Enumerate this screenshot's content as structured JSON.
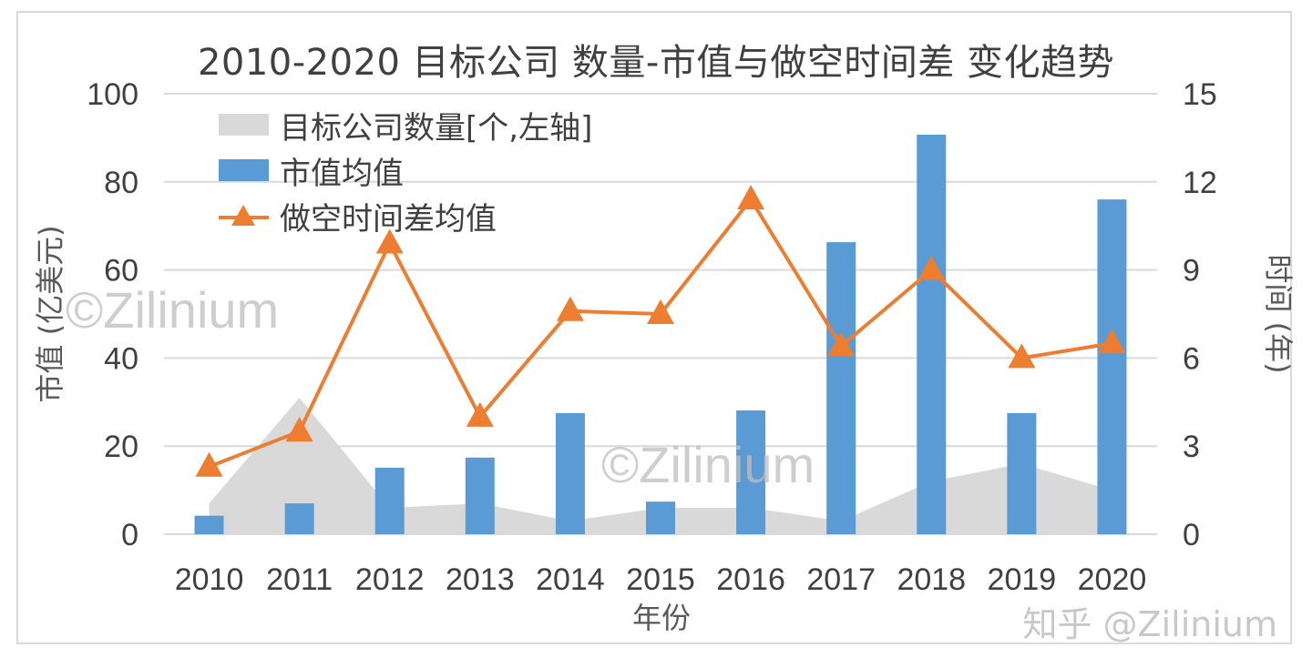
{
  "chart_data": {
    "type": "bar+line+area",
    "title": "2010-2020 目标公司 数量-市值与做空时间差 变化趋势",
    "xlabel": "年份",
    "ylabel": "市值 (亿美元)",
    "y2label": "时间 (年)",
    "categories": [
      "2010",
      "2011",
      "2012",
      "2013",
      "2014",
      "2015",
      "2016",
      "2017",
      "2018",
      "2019",
      "2020"
    ],
    "ylim": [
      0,
      100
    ],
    "yticks": [
      "0",
      "20",
      "40",
      "60",
      "80",
      "100"
    ],
    "y2lim": [
      0,
      15
    ],
    "y2ticks": [
      "0",
      "3",
      "6",
      "9",
      "12",
      "15"
    ],
    "grid": true,
    "legend_position": "upper-left inside",
    "series": [
      {
        "name": "目标公司数量[个,左轴]",
        "type": "area",
        "axis": "left",
        "color": "#d9d9d9",
        "values": [
          7,
          31,
          6,
          7,
          3,
          6,
          6,
          3,
          12,
          16,
          10
        ]
      },
      {
        "name": "市值均值",
        "type": "bar",
        "axis": "left",
        "color": "#5b9bd5",
        "values": [
          4.2,
          7.0,
          15.1,
          17.4,
          27.5,
          7.4,
          28.1,
          66.3,
          90.7,
          27.5,
          76.0
        ]
      },
      {
        "name": "做空时间差均值",
        "type": "line",
        "axis": "right",
        "color": "#ed7d31",
        "marker": "triangle",
        "values": [
          2.3,
          3.5,
          9.9,
          4.0,
          7.6,
          7.5,
          11.4,
          6.4,
          9.0,
          6.0,
          6.5
        ]
      }
    ]
  },
  "legend": {
    "area_label": "目标公司数量[个,左轴]",
    "bar_label": "市值均值",
    "line_label": "做空时间差均值"
  },
  "watermarks": [
    "©Zilinium",
    "©Zilinium"
  ],
  "credit": "知乎 @Zilinium"
}
